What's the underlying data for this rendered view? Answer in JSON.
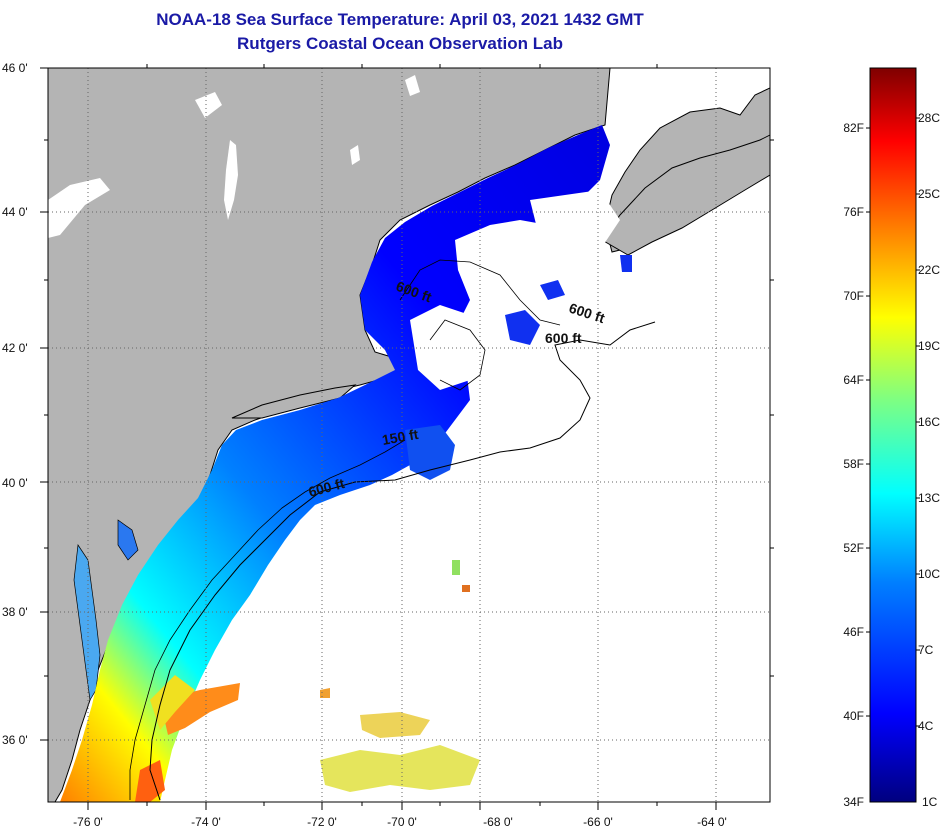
{
  "header": {
    "title": "NOAA-18 Sea Surface Temperature:  April 03, 2021 1432 GMT",
    "subtitle": "Rutgers Coastal Ocean Observation Lab"
  },
  "map": {
    "lon_labels": [
      "-76 0'",
      "-74 0'",
      "-72 0'",
      "-70 0'",
      "-68 0'",
      "-66 0'",
      "-64 0'"
    ],
    "lat_labels": [
      "46 0'",
      "44 0'",
      "42 0'",
      "40 0'",
      "38 0'",
      "36 0'"
    ],
    "contour_labels": [
      "600 ft",
      "600 ft",
      "600 ft",
      "150 ft",
      "600 ft"
    ],
    "colors": {
      "land": "#b4b4b4",
      "cloud_no_data": "#ffffff",
      "frame": "#000000"
    }
  },
  "colorbar": {
    "fahrenheit_labels": [
      "82F",
      "76F",
      "70F",
      "64F",
      "58F",
      "52F",
      "46F",
      "40F",
      "34F"
    ],
    "celsius_labels": [
      "28C",
      "25C",
      "22C",
      "19C",
      "16C",
      "13C",
      "10C",
      "7C",
      "4C",
      "1C"
    ],
    "gradient_colors": [
      "#00007f",
      "#0000ff",
      "#0080ff",
      "#00ffff",
      "#80ff80",
      "#ffff00",
      "#ff8000",
      "#ff0000",
      "#7f0000"
    ]
  }
}
